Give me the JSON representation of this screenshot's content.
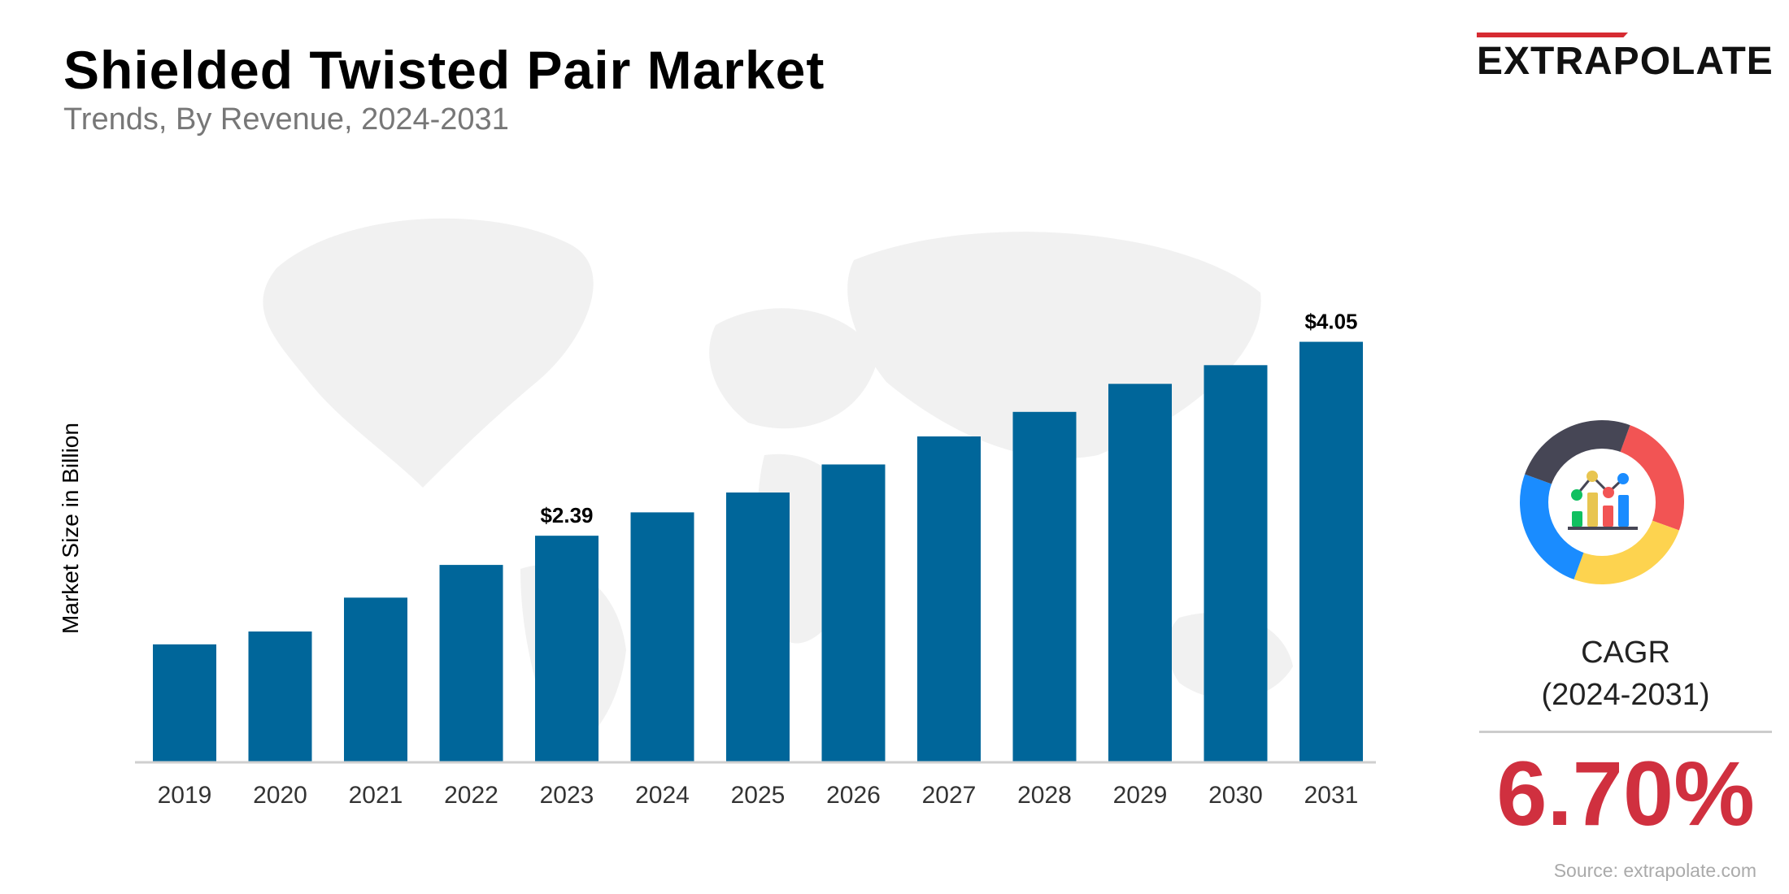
{
  "header": {
    "title": "Shielded Twisted Pair Market",
    "subtitle": "Trends, By Revenue, 2024-2031"
  },
  "logo": {
    "text": "EXTRAPOLATE"
  },
  "cagr": {
    "label": "CAGR",
    "period": "(2024-2031)",
    "value": "6.70%"
  },
  "source": "Source: extrapolate.com",
  "colors": {
    "bar": "#00669a",
    "accent": "#d0303f",
    "donut": [
      "#f25454",
      "#fdd34f",
      "#1a8cff",
      "#464655"
    ]
  },
  "icons": {
    "cagr_icon": "chart-donut-icon"
  },
  "chart_data": {
    "type": "bar",
    "title": "",
    "xlabel": "",
    "ylabel": "Market Size in Billion",
    "categories": [
      "2019",
      "2020",
      "2021",
      "2022",
      "2023",
      "2024",
      "2025",
      "2026",
      "2027",
      "2028",
      "2029",
      "2030",
      "2031"
    ],
    "values": [
      1.46,
      1.57,
      1.86,
      2.14,
      2.39,
      2.59,
      2.76,
      3.0,
      3.24,
      3.45,
      3.69,
      3.85,
      4.05
    ],
    "data_labels": {
      "2023": "$2.39",
      "2031": "$4.05"
    },
    "ylim": [
      0.45,
      4.5
    ],
    "grid": false
  }
}
